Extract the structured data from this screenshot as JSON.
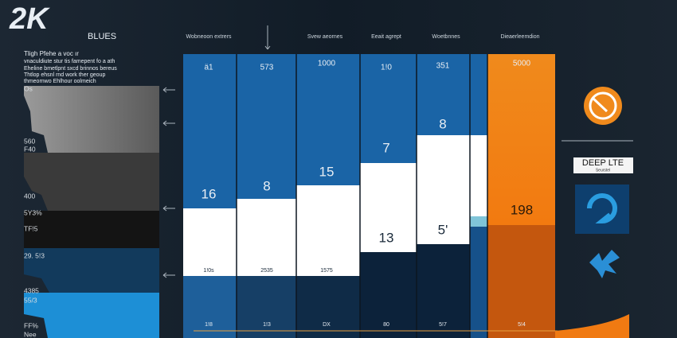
{
  "header": {
    "logo": "2K",
    "logo_sub": "BLUES"
  },
  "intro": [
    "Tligh Pfehe a voc ır",
    "vnaculdiute stur tis famepent fo a ath",
    "Eheline bmetlpnt sxcd brinnos bereus",
    "Thtlop ehsnl rnd work ther geoup",
    "thmeornwo Ehlhour oolmeich"
  ],
  "left_labels": [
    "Os",
    "560",
    "F40",
    "400",
    "5Y3%",
    "TF!5",
    "29. 5!3",
    "4385",
    "55/3",
    "FF%",
    "Nee"
  ],
  "columns": [
    {
      "header": "Wobneoon extrers",
      "top": "ä1",
      "main": "16",
      "low": "1!0s",
      "bottom": "1!8"
    },
    {
      "header": null,
      "top": "573",
      "main": "8",
      "low": "2535",
      "bottom": "1!3"
    },
    {
      "header": "Svew aeornes",
      "top": "1000",
      "main": "15",
      "low": "1575",
      "bottom": "DX"
    },
    {
      "header": "Eeait agrept",
      "top": "1!0",
      "main": "7",
      "low": "13",
      "bottom": "80"
    },
    {
      "header": "Woetbnnes",
      "top": "351",
      "main": "8",
      "low": "5'",
      "bottom": "5!7"
    },
    {
      "header": "Dieaerleemdion",
      "top": "5000",
      "main": "198",
      "low": null,
      "bottom": "5!4"
    }
  ],
  "right": {
    "badge_title": "DEEP LTE",
    "badge_sub": "Seurstel"
  }
}
